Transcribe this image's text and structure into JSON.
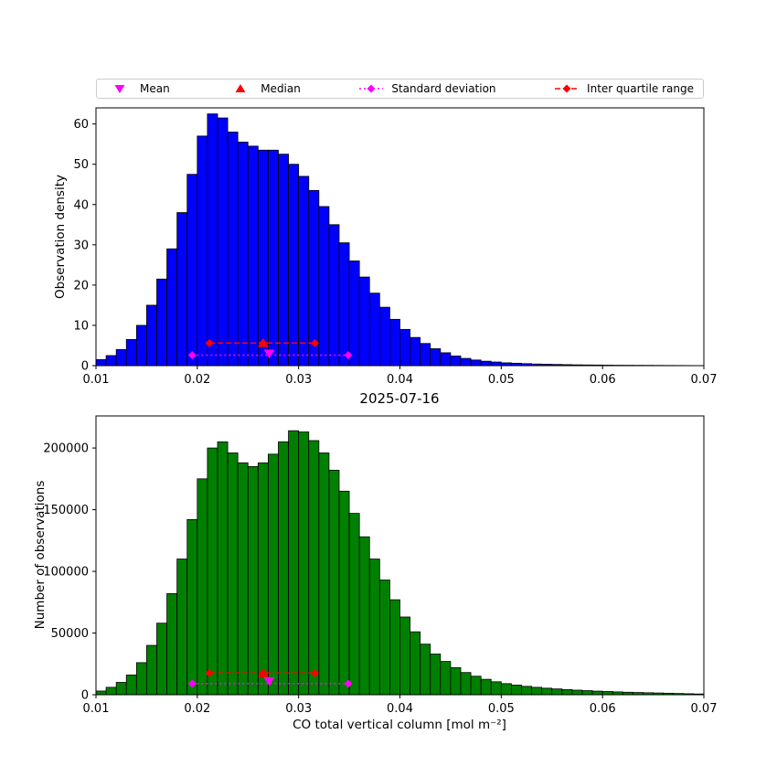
{
  "figure": {
    "title": "2025-07-16",
    "background": "#ffffff"
  },
  "legend": {
    "items": [
      {
        "label": "Mean",
        "marker": "triangle-down",
        "color": "#ff00ff",
        "line": "none"
      },
      {
        "label": "Median",
        "marker": "triangle-up",
        "color": "#ff0000",
        "line": "none"
      },
      {
        "label": "Standard deviation",
        "marker": "diamond",
        "color": "#ff00ff",
        "line": "dotted"
      },
      {
        "label": "Inter quartile range",
        "marker": "diamond",
        "color": "#ff0000",
        "line": "dashed"
      }
    ]
  },
  "chart_data": [
    {
      "type": "bar",
      "subplot": "top",
      "title": "",
      "xlabel": "",
      "ylabel": "Observation density",
      "bar_color": "#0000ff",
      "bar_edge_color": "#000000",
      "grid": false,
      "xlim": [
        0.01,
        0.07
      ],
      "ylim": [
        0,
        64
      ],
      "xticks": [
        0.01,
        0.02,
        0.03,
        0.04,
        0.05,
        0.06,
        0.07
      ],
      "xtick_labels": [
        "0.01",
        "0.02",
        "0.03",
        "0.04",
        "0.05",
        "0.06",
        "0.07"
      ],
      "yticks": [
        0,
        10,
        20,
        30,
        40,
        50,
        60
      ],
      "ytick_labels": [
        "0",
        "10",
        "20",
        "30",
        "40",
        "50",
        "60"
      ],
      "bin_start": 0.01,
      "bin_width": 0.001,
      "values": [
        1.5,
        2.5,
        4.0,
        6.5,
        10.0,
        15.0,
        21.5,
        29.0,
        38.0,
        47.5,
        57.0,
        62.5,
        61.5,
        58.0,
        55.5,
        54.5,
        53.5,
        53.5,
        52.5,
        50.0,
        47.0,
        43.5,
        39.5,
        35.0,
        30.5,
        26.0,
        22.0,
        18.0,
        14.5,
        11.5,
        9.0,
        7.0,
        5.5,
        4.2,
        3.2,
        2.4,
        1.8,
        1.4,
        1.1,
        0.9,
        0.7,
        0.6,
        0.5,
        0.4,
        0.35,
        0.3,
        0.25,
        0.2,
        0.17,
        0.15,
        0.12,
        0.1,
        0.09,
        0.08,
        0.07,
        0.06,
        0.05,
        0.04,
        0.03,
        0.02
      ],
      "markers": {
        "mean": {
          "x": 0.0271,
          "y": 3.0,
          "color": "#ff00ff"
        },
        "median": {
          "x": 0.0265,
          "y": 5.6,
          "color": "#ff0000"
        },
        "std": {
          "x1": 0.0195,
          "x2": 0.0349,
          "y": 2.6,
          "color": "#ff00ff",
          "style": "dotted"
        },
        "iqr": {
          "x1": 0.0212,
          "x2": 0.0316,
          "y": 5.6,
          "color": "#ff0000",
          "style": "dashed"
        }
      }
    },
    {
      "type": "bar",
      "subplot": "bottom",
      "title": "2025-07-16",
      "xlabel": "CO total vertical column [mol m⁻²]",
      "ylabel": "Number of observations",
      "bar_color": "#008000",
      "bar_edge_color": "#000000",
      "grid": false,
      "xlim": [
        0.01,
        0.07
      ],
      "ylim": [
        0,
        226000
      ],
      "xticks": [
        0.01,
        0.02,
        0.03,
        0.04,
        0.05,
        0.06,
        0.07
      ],
      "xtick_labels": [
        "0.01",
        "0.02",
        "0.03",
        "0.04",
        "0.05",
        "0.06",
        "0.07"
      ],
      "yticks": [
        0,
        50000,
        100000,
        150000,
        200000
      ],
      "ytick_labels": [
        "0",
        "50000",
        "100000",
        "150000",
        "200000"
      ],
      "bin_start": 0.01,
      "bin_width": 0.001,
      "values": [
        3000,
        6000,
        10000,
        16000,
        26000,
        40000,
        58000,
        82000,
        110000,
        142000,
        175000,
        200000,
        205000,
        196000,
        188000,
        185000,
        188000,
        195000,
        205000,
        214000,
        213000,
        206000,
        196000,
        182000,
        165000,
        147000,
        128000,
        110000,
        93000,
        77000,
        63000,
        51000,
        41000,
        33000,
        27000,
        22000,
        18000,
        15000,
        12500,
        10500,
        9000,
        7800,
        6800,
        6000,
        5300,
        4700,
        4200,
        3700,
        3300,
        2900,
        2600,
        2300,
        2000,
        1800,
        1600,
        1400,
        1200,
        1000,
        800,
        600
      ],
      "markers": {
        "mean": {
          "x": 0.0271,
          "y": 11000,
          "color": "#ff00ff"
        },
        "median": {
          "x": 0.0265,
          "y": 17500,
          "color": "#ff0000"
        },
        "std": {
          "x1": 0.0195,
          "x2": 0.0349,
          "y": 9000,
          "color": "#ff00ff",
          "style": "dotted"
        },
        "iqr": {
          "x1": 0.0212,
          "x2": 0.0316,
          "y": 17500,
          "color": "#ff0000",
          "style": "dashed"
        }
      }
    }
  ]
}
